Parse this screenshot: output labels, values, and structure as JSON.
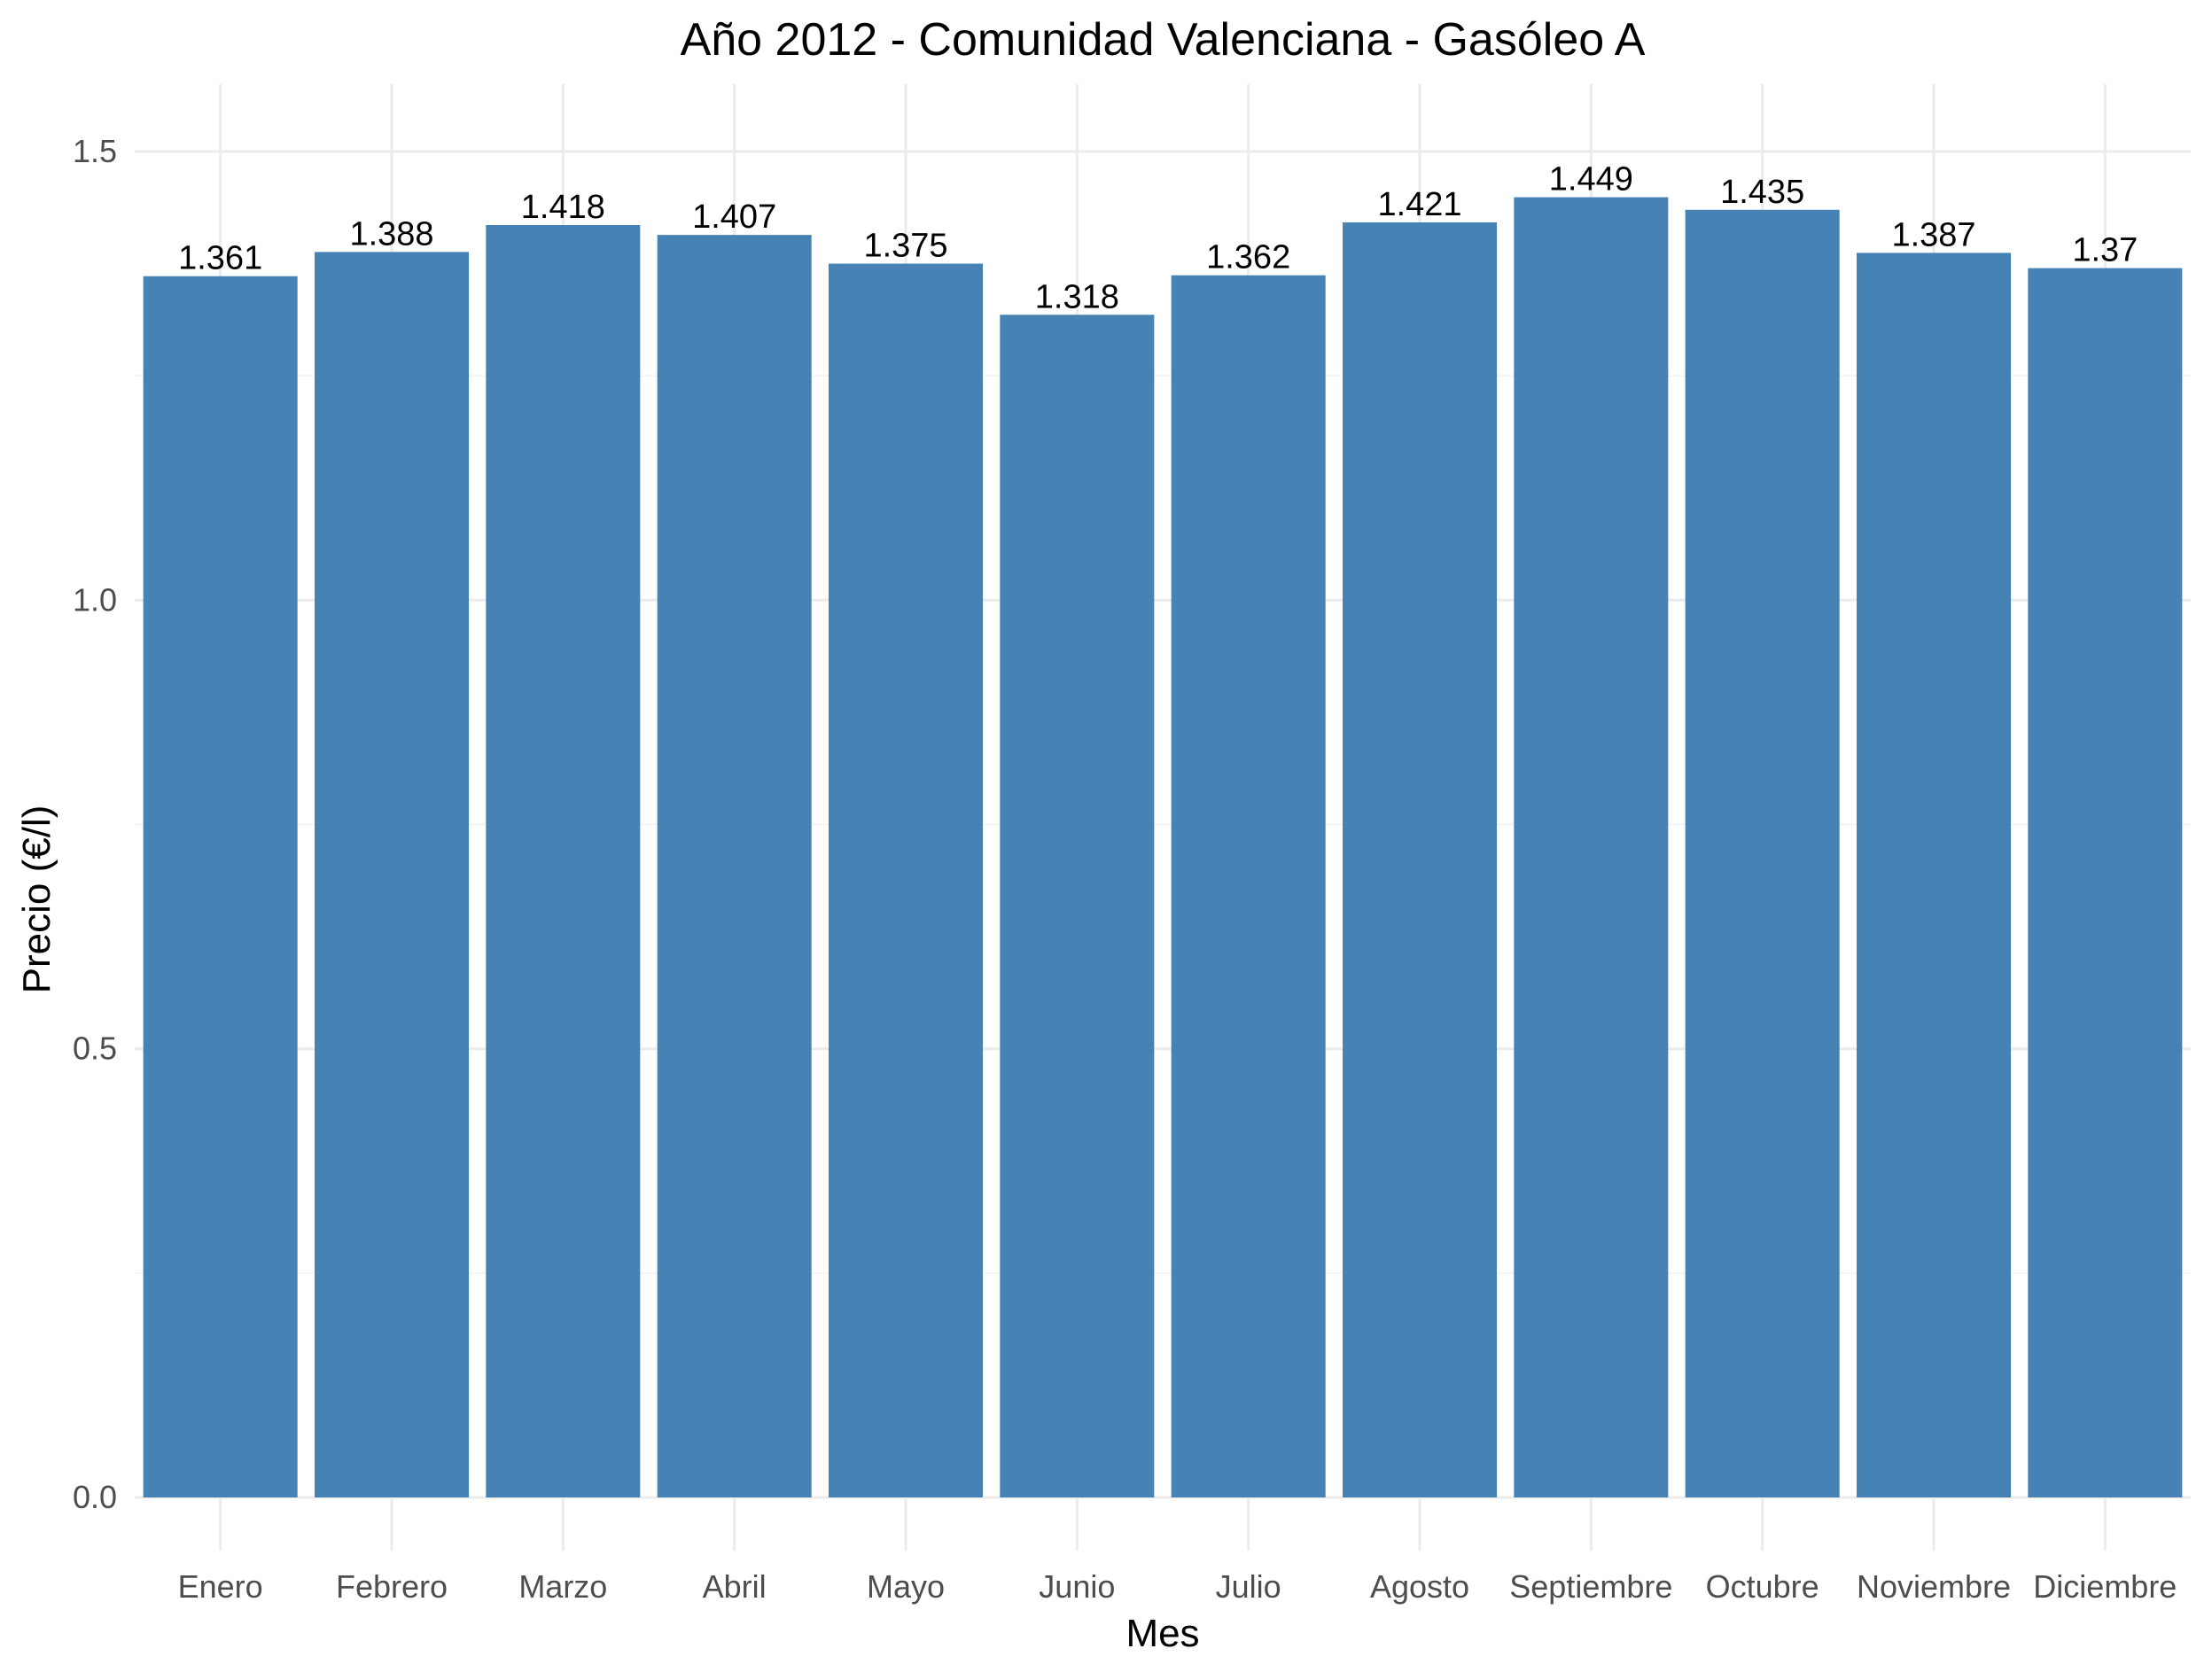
{
  "chart_data": {
    "type": "bar",
    "title": "Año 2012 - Comunidad Valenciana - Gasóleo A",
    "xlabel": "Mes",
    "ylabel": "Precio (€/l)",
    "categories": [
      "Enero",
      "Febrero",
      "Marzo",
      "Abril",
      "Mayo",
      "Junio",
      "Julio",
      "Agosto",
      "Septiembre",
      "Octubre",
      "Noviembre",
      "Diciembre"
    ],
    "values": [
      1.361,
      1.388,
      1.418,
      1.407,
      1.375,
      1.318,
      1.362,
      1.421,
      1.449,
      1.435,
      1.387,
      1.37
    ],
    "data_labels": [
      "1.361",
      "1.388",
      "1.418",
      "1.407",
      "1.375",
      "1.318",
      "1.362",
      "1.421",
      "1.449",
      "1.435",
      "1.387",
      "1.37"
    ],
    "ylim": [
      0,
      1.575
    ],
    "y_ticks": [
      0,
      0.5,
      1.0,
      1.5
    ],
    "y_tick_labels": [
      "0.0",
      "0.5",
      "1.0",
      "1.5"
    ],
    "grid": true,
    "legend": "none",
    "colors": {
      "bar": "#4682b4"
    }
  }
}
